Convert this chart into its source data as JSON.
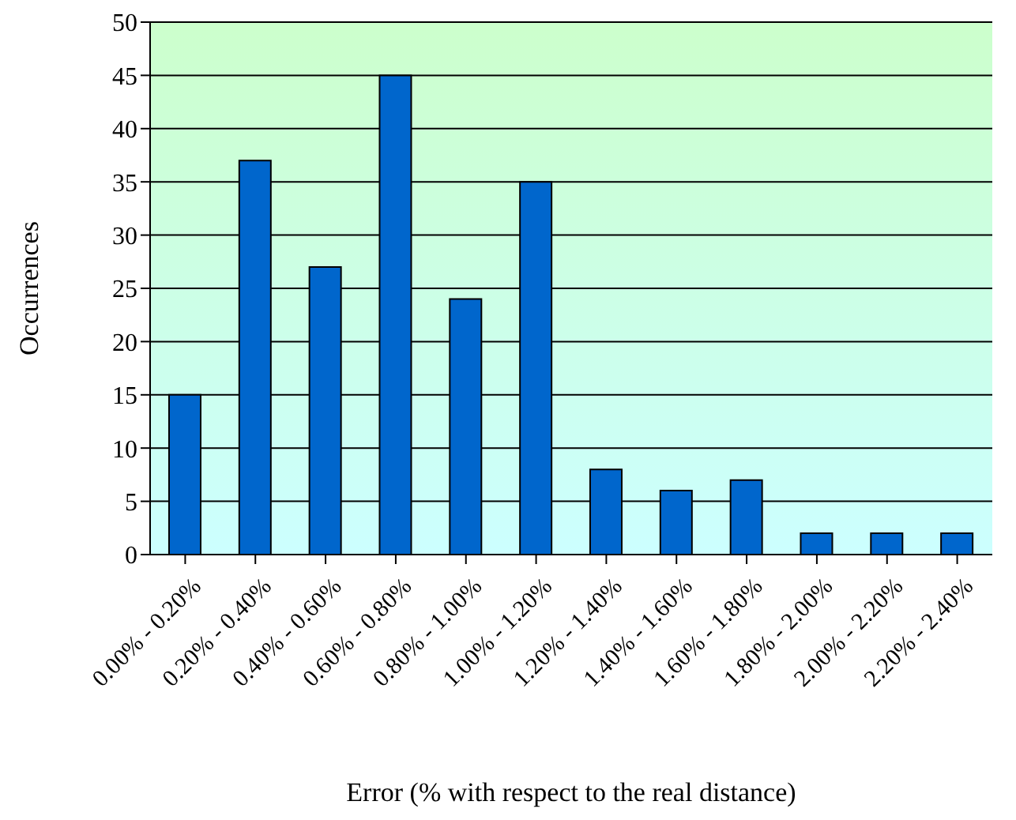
{
  "chart_data": {
    "type": "bar",
    "xlabel": "Error (% with respect to the real distance)",
    "ylabel": "Occurrences",
    "categories": [
      "0.00% - 0.20%",
      "0.20% - 0.40%",
      "0.40% - 0.60%",
      "0.60% - 0.80%",
      "0.80% - 1.00%",
      "1.00% - 1.20%",
      "1.20% - 1.40%",
      "1.40% - 1.60%",
      "1.60% - 1.80%",
      "1.80% - 2.00%",
      "2.00% - 2.20%",
      "2.20% - 2.40%"
    ],
    "values": [
      15,
      37,
      27,
      45,
      24,
      35,
      8,
      6,
      7,
      2,
      2,
      2
    ],
    "color": "#0066cc",
    "ylim": [
      0,
      50
    ],
    "yticks": [
      0,
      5,
      10,
      15,
      20,
      25,
      30,
      35,
      40,
      45,
      50
    ],
    "grid": "y"
  }
}
